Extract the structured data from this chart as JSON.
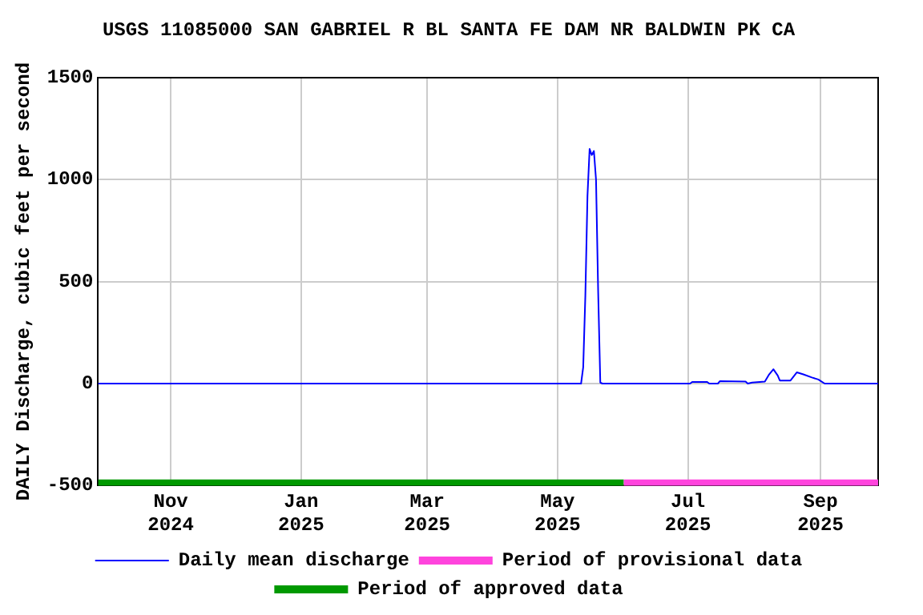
{
  "chart_data": {
    "type": "line",
    "title": "USGS 11085000 SAN GABRIEL R BL SANTA FE DAM NR BALDWIN PK CA",
    "ylabel": "DAILY Discharge, cubic feet per second",
    "series": [
      {
        "name": "Daily mean discharge",
        "color": "#0000ff",
        "x": [
          "2024-09-28",
          "2025-05-12",
          "2025-05-13",
          "2025-05-14",
          "2025-05-15",
          "2025-05-16",
          "2025-05-17",
          "2025-05-18",
          "2025-05-19",
          "2025-05-20",
          "2025-05-21",
          "2025-05-22",
          "2025-07-02",
          "2025-07-03",
          "2025-07-10",
          "2025-07-11",
          "2025-07-15",
          "2025-07-16",
          "2025-07-28",
          "2025-07-29",
          "2025-07-31",
          "2025-08-06",
          "2025-08-08",
          "2025-08-10",
          "2025-08-12",
          "2025-08-13",
          "2025-08-18",
          "2025-08-21",
          "2025-08-24",
          "2025-08-28",
          "2025-08-31",
          "2025-09-03",
          "2025-09-28"
        ],
        "values": [
          0,
          0,
          80,
          430,
          920,
          1150,
          1120,
          1140,
          1000,
          450,
          5,
          0,
          0,
          8,
          8,
          0,
          0,
          12,
          10,
          0,
          5,
          10,
          45,
          70,
          40,
          15,
          15,
          55,
          45,
          30,
          20,
          0,
          0
        ]
      },
      {
        "name": "Period of provisional data",
        "color": "#ff44dd",
        "x": [
          "2025-06-01",
          "2025-09-28"
        ],
        "values": [
          -490,
          -490
        ]
      },
      {
        "name": "Period of approved data",
        "color": "#009900",
        "x": [
          "2024-09-28",
          "2025-06-01"
        ],
        "values": [
          -490,
          -490
        ]
      }
    ],
    "xlim": [
      "2024-09-28",
      "2025-09-28"
    ],
    "xticks": [
      {
        "value": "2024-11-01",
        "label": "Nov 2024"
      },
      {
        "value": "2025-01-01",
        "label": "Jan 2025"
      },
      {
        "value": "2025-03-01",
        "label": "Mar 2025"
      },
      {
        "value": "2025-05-01",
        "label": "May 2025"
      },
      {
        "value": "2025-07-01",
        "label": "Jul 2025"
      },
      {
        "value": "2025-09-01",
        "label": "Sep 2025"
      }
    ],
    "ylim": [
      -500,
      1500
    ],
    "yticks": [
      -500,
      0,
      500,
      1000,
      1500
    ],
    "grid": true,
    "legend": "bottom",
    "marker": "none",
    "line_style": "solid"
  }
}
